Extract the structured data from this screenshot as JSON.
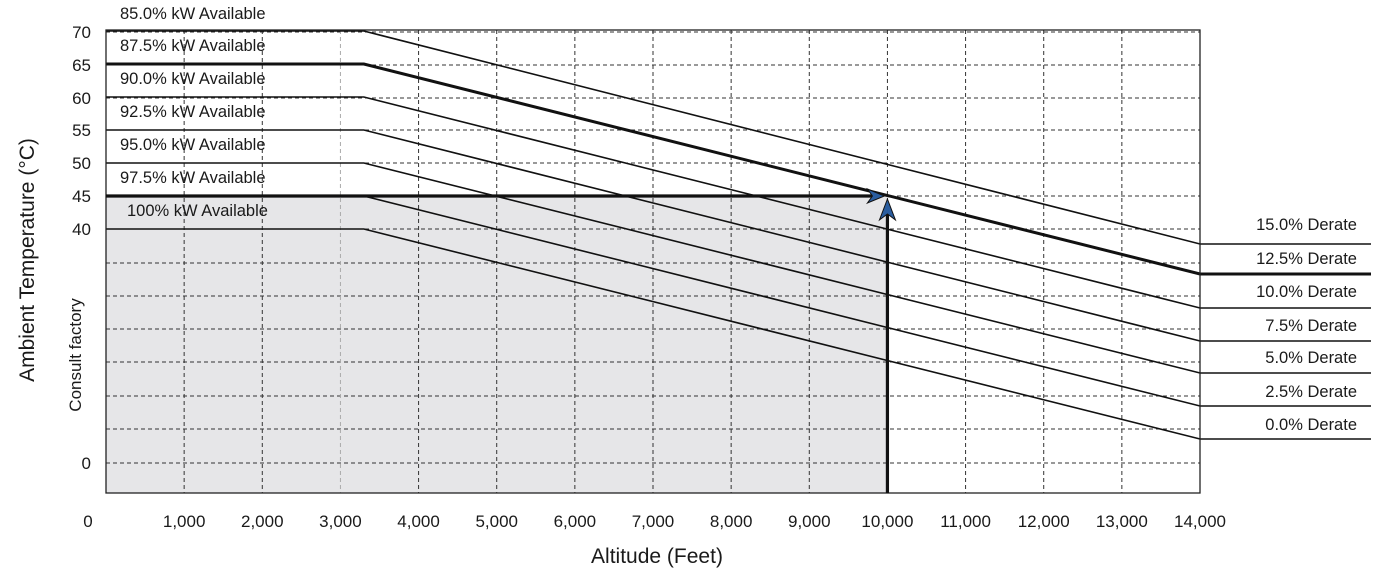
{
  "chart_data": {
    "type": "line",
    "title": "",
    "xlabel": "Altitude (Feet)",
    "ylabel": "Ambient Temperature (°C)",
    "ylabel_secondary": "Consult factory",
    "xlim": [
      0,
      14000
    ],
    "x_ticks": [
      "0",
      "1,000",
      "2,000",
      "3,000",
      "4,000",
      "5,000",
      "6,000",
      "7,000",
      "8,000",
      "9,000",
      "10,000",
      "11,000",
      "12,000",
      "13,000",
      "14,000"
    ],
    "y_tick_labels": [
      "70",
      "65",
      "60",
      "55",
      "50",
      "45",
      "40",
      "0"
    ],
    "grid": true,
    "shaded_region": {
      "x_max": 10000,
      "y_max": 45,
      "color": "#e6e6e8"
    },
    "series": [
      {
        "available": "100% kW Available",
        "derate": "0.0% Derate",
        "start_temp": 40,
        "knee_altitude": 3300,
        "bold": false
      },
      {
        "available": "97.5% kW Available",
        "derate": "2.5% Derate",
        "start_temp": 45,
        "knee_altitude": 3300,
        "bold": false
      },
      {
        "available": "95.0% kW Available",
        "derate": "5.0% Derate",
        "start_temp": 50,
        "knee_altitude": 3300,
        "bold": false
      },
      {
        "available": "92.5% kW Available",
        "derate": "7.5% Derate",
        "start_temp": 55,
        "knee_altitude": 3300,
        "bold": false
      },
      {
        "available": "90.0% kW Available",
        "derate": "10.0% Derate",
        "start_temp": 60,
        "knee_altitude": 3300,
        "bold": false
      },
      {
        "available": "87.5% kW Available",
        "derate": "12.5% Derate",
        "start_temp": 65,
        "knee_altitude": 3300,
        "bold": true
      },
      {
        "available": "85.0% kW Available",
        "derate": "15.0% Derate",
        "start_temp": 70,
        "knee_altitude": 3300,
        "bold": false
      }
    ],
    "example": {
      "altitude": 10000,
      "temperature": 45,
      "arrow_color": "#2a5d9f"
    }
  }
}
